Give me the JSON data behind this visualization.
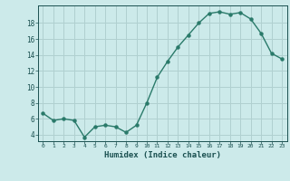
{
  "x": [
    0,
    1,
    2,
    3,
    4,
    5,
    6,
    7,
    8,
    9,
    10,
    11,
    12,
    13,
    14,
    15,
    16,
    17,
    18,
    19,
    20,
    21,
    22,
    23
  ],
  "y": [
    6.7,
    5.8,
    6.0,
    5.8,
    3.7,
    5.0,
    5.2,
    5.0,
    4.3,
    5.2,
    8.0,
    11.2,
    13.2,
    15.0,
    16.5,
    18.0,
    19.2,
    19.4,
    19.1,
    19.3,
    18.5,
    16.7,
    14.2,
    13.5
  ],
  "xlabel": "Humidex (Indice chaleur)",
  "bg_color": "#cceaea",
  "line_color": "#2a7a6a",
  "grid_color": "#b0d0d0",
  "axis_label_color": "#1a5050",
  "tick_label_color": "#1a5050",
  "yticks": [
    4,
    6,
    8,
    10,
    12,
    14,
    16,
    18
  ],
  "xticks": [
    0,
    1,
    2,
    3,
    4,
    5,
    6,
    7,
    8,
    9,
    10,
    11,
    12,
    13,
    14,
    15,
    16,
    17,
    18,
    19,
    20,
    21,
    22,
    23
  ],
  "ylim": [
    3.2,
    20.2
  ],
  "xlim": [
    -0.5,
    23.5
  ]
}
